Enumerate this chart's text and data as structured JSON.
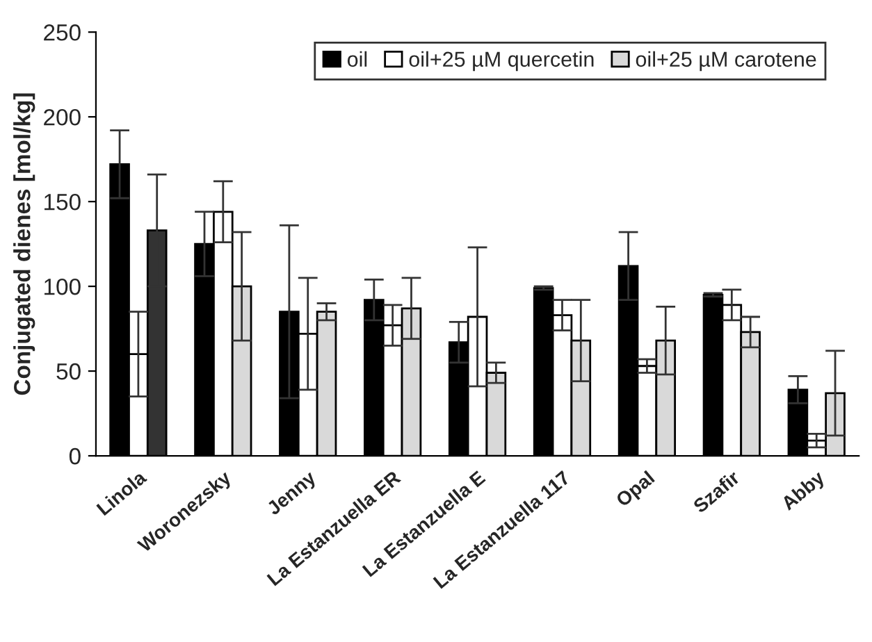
{
  "chart_data": {
    "type": "bar",
    "ylabel": "Conjugated dienes [mol/kg]",
    "categories": [
      "Linola",
      "Woronezsky",
      "Jenny",
      "La Estanzuella ER",
      "La Estanzuella E",
      "La Estanzuella 117",
      "Opal",
      "Szafir",
      "Abby"
    ],
    "series": [
      {
        "name": "oil",
        "color": "#000000",
        "values": [
          172,
          125,
          85,
          92,
          67,
          99,
          112,
          95,
          39
        ],
        "errors": [
          20,
          19,
          51,
          12,
          12,
          1,
          20,
          1,
          8
        ]
      },
      {
        "name": "oil+25 µM quercetin",
        "color": "#ffffff",
        "values": [
          60,
          144,
          72,
          77,
          82,
          83,
          53,
          89,
          9
        ],
        "errors": [
          25,
          18,
          33,
          12,
          41,
          9,
          4,
          9,
          4
        ]
      },
      {
        "name": "oil+25 µM carotene",
        "color": "#d9d9d9",
        "colors": [
          "#333333",
          "#d9d9d9",
          "#d9d9d9",
          "#d9d9d9",
          "#d9d9d9",
          "#d9d9d9",
          "#d9d9d9",
          "#d9d9d9",
          "#d9d9d9"
        ],
        "values": [
          133,
          100,
          85,
          87,
          49,
          68,
          68,
          73,
          37
        ],
        "errors": [
          33,
          32,
          5,
          18,
          6,
          24,
          20,
          9,
          25
        ]
      }
    ],
    "ylim": [
      0,
      250
    ],
    "yticks": [
      0,
      50,
      100,
      150,
      200,
      250
    ],
    "grid": false,
    "legend": "top right"
  }
}
